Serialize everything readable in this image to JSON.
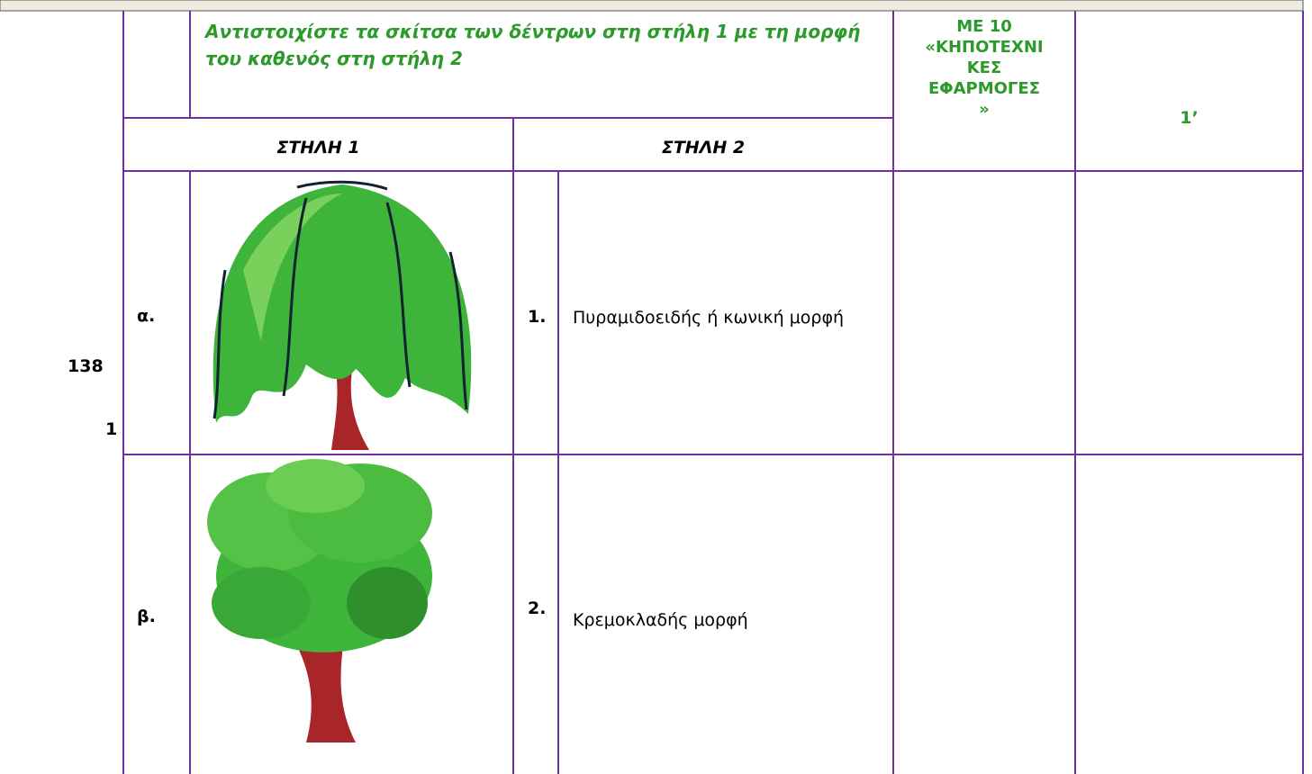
{
  "table": {
    "id": "138",
    "id_suffix": "1",
    "question": "Αντιστοιχίστε τα σκίτσα των δέντρων στη στήλη 1 με τη μορφή του καθενός στη στήλη 2",
    "section": [
      "ΜΕ 10",
      "«ΚΗΠΟΤΕΧΝΙ",
      "ΚΕΣ",
      "ΕΦΑΡΜΟΓΕΣ",
      "»"
    ],
    "points": "1’",
    "column_headers": [
      "ΣΤΗΛΗ 1",
      "ΣΤΗΛΗ 2"
    ],
    "rows": [
      {
        "letter": "α.",
        "number": "1.",
        "description": "Πυραμιδοειδής ή κωνική μορφή"
      },
      {
        "letter": "β.",
        "number": "2.",
        "description": "Κρεμοκλαδής μορφή"
      }
    ]
  }
}
